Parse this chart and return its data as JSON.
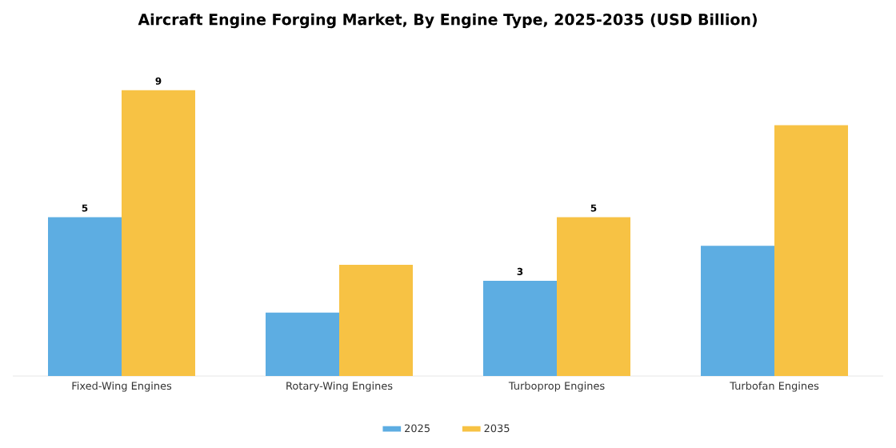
{
  "chart_data": {
    "type": "bar",
    "title": "Aircraft Engine Forging Market, By Engine Type, 2025-2035 (USD Billion)",
    "categories": [
      "Fixed-Wing Engines",
      "Rotary-Wing Engines",
      "Turboprop Engines",
      "Turbofan Engines"
    ],
    "series": [
      {
        "name": "2025",
        "color": "#5dade2",
        "values": [
          5,
          2,
          3,
          4.1
        ],
        "value_labels": [
          "5",
          null,
          "3",
          null
        ]
      },
      {
        "name": "2035",
        "color": "#f7c244",
        "values": [
          9,
          3.5,
          5,
          7.9
        ],
        "value_labels": [
          "9",
          null,
          "5",
          null
        ]
      }
    ],
    "legend": "bottom"
  }
}
